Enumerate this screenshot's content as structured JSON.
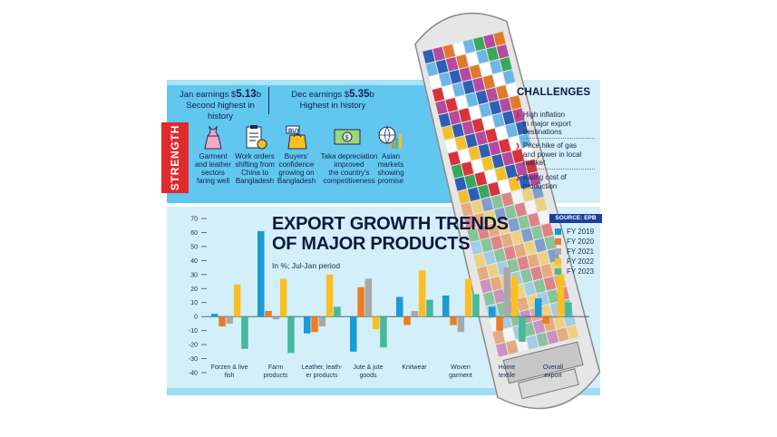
{
  "strength": {
    "label": "STRENGTH",
    "header_left": {
      "prefix": "Jan earnings $",
      "value": "5.13",
      "suffix": "b",
      "line2": "Second highest in history"
    },
    "header_right": {
      "prefix": "Dec earnings $",
      "value": "5.35",
      "suffix": "b",
      "line2": "Highest in history"
    },
    "items": [
      {
        "icon": "dress-icon",
        "line1": "Garment",
        "line2": "and leather",
        "line3": "sectors",
        "line4": "faring well"
      },
      {
        "icon": "work-order-icon",
        "line1": "Work orders",
        "line2": "shifting from",
        "line3": "China to",
        "line4": "Bangladesh"
      },
      {
        "icon": "buy-bag-icon",
        "line1": "Buyers'",
        "line2": "confidence",
        "line3": "growing on",
        "line4": "Bangladesh"
      },
      {
        "icon": "banknote-icon",
        "line1": "Taka depreciation",
        "line2": "improved",
        "line3": "the country's",
        "line4": "competitiveness"
      },
      {
        "icon": "globe-chart-icon",
        "line1": "Asian",
        "line2": "markets",
        "line3": "showing",
        "line4": "promise"
      }
    ]
  },
  "challenges": {
    "title": "CHALLENGES",
    "items": [
      {
        "line1": "High inflation",
        "line2": "in major export",
        "line3": "destinations"
      },
      {
        "line1": "Price hike of gas",
        "line2": "and power in local",
        "line3": "market"
      },
      {
        "line1": "Rising cost of",
        "line2": "production",
        "line3": ""
      }
    ]
  },
  "chart_data": {
    "type": "bar",
    "title_line1": "EXPORT GROWTH TRENDS",
    "title_line2": "OF MAJOR PRODUCTS",
    "subtitle": "In %; Jul-Jan period",
    "source": "SOURCE: EPB",
    "ylim": [
      -40,
      70
    ],
    "yticks": [
      70,
      60,
      50,
      40,
      30,
      20,
      10,
      0,
      -10,
      -20,
      -30,
      -40
    ],
    "categories": [
      {
        "line1": "Forzen & live",
        "line2": "fish"
      },
      {
        "line1": "Farm",
        "line2": "products"
      },
      {
        "line1": "Leather, leath-",
        "line2": "er products"
      },
      {
        "line1": "Jute & jute",
        "line2": "goods"
      },
      {
        "line1": "Knitwear",
        "line2": ""
      },
      {
        "line1": "Woven",
        "line2": "garment"
      },
      {
        "line1": "Home",
        "line2": "textile"
      },
      {
        "line1": "Overall",
        "line2": "export"
      }
    ],
    "series": [
      {
        "name": "FY 2019",
        "color": "#1a9ad6",
        "values": [
          2,
          61,
          -12,
          -25,
          14,
          15,
          7,
          13
        ]
      },
      {
        "name": "FY 2020",
        "color": "#f07b21",
        "values": [
          -7,
          4,
          -11,
          21,
          -6,
          -6,
          -10,
          -5
        ]
      },
      {
        "name": "FY 2021",
        "color": "#a8a8a8",
        "values": [
          -5,
          -2,
          -7,
          27,
          4,
          -11,
          35,
          -1
        ]
      },
      {
        "name": "FY 2022",
        "color": "#fbbf22",
        "values": [
          23,
          27,
          30,
          -9,
          33,
          27,
          29,
          30
        ]
      },
      {
        "name": "FY 2023",
        "color": "#46b99a",
        "values": [
          -23,
          -26,
          7,
          -22,
          12,
          16,
          -18,
          10
        ]
      }
    ]
  }
}
